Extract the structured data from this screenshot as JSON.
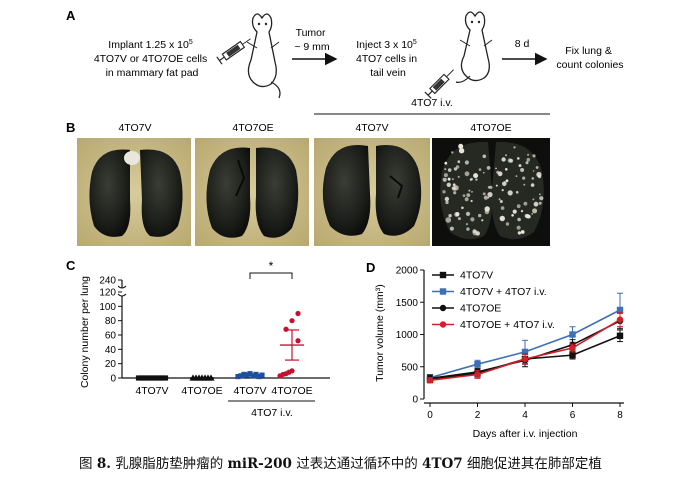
{
  "panel_a": {
    "letter": "A",
    "step1": [
      "Implant 1.25 x 10",
      "5",
      "4TO7V or 4TO7OE cells",
      "in mammary fat pad"
    ],
    "arrow1": [
      "Tumor",
      "~ 9 mm"
    ],
    "step2": [
      "Inject 3 x 10",
      "5",
      "4TO7 cells in",
      "tail vein"
    ],
    "arrow2": "8 d",
    "step3": [
      "Fix lung &",
      "count colonies"
    ]
  },
  "panel_b": {
    "letter": "B",
    "bracket_label": "4TO7 i.v.",
    "labels": [
      "4TO7V",
      "4TO7OE",
      "4TO7V",
      "4TO7OE"
    ]
  },
  "panel_c": {
    "letter": "C",
    "significance": "*",
    "bracket_label": "4TO7 i.v."
  },
  "panel_d": {
    "letter": "D"
  },
  "caption": {
    "prefix": "图",
    "number": "8.",
    "text_a": "乳腺脂肪垫肿瘤的",
    "mirna": "miR-200",
    "text_b": "过表达通过循环中的",
    "cell": "4TO7",
    "text_c": "细胞促进其在肺部定植"
  },
  "chart_data": [
    {
      "type": "scatter",
      "panel": "C",
      "ylabel": "Colony number per lung",
      "categories": [
        "4TO7V",
        "4TO7OE",
        "4TO7V",
        "4TO7OE"
      ],
      "yticks": [
        0,
        20,
        40,
        60,
        80,
        100,
        120,
        240
      ],
      "ylim": [
        0,
        120
      ],
      "axis_break": true,
      "colors": [
        "#111111",
        "#111111",
        "#1f4e9c",
        "#c8102e"
      ],
      "markers": [
        "square",
        "triangle",
        "square",
        "circle"
      ],
      "points": [
        [
          0,
          0,
          0,
          0,
          0,
          0,
          0,
          0,
          0,
          0
        ],
        [
          0,
          0,
          0,
          0,
          0,
          0,
          0
        ],
        [
          2,
          3,
          5,
          4,
          6,
          3,
          5,
          2,
          4
        ],
        [
          3,
          5,
          6,
          8,
          10,
          52,
          68,
          80,
          90
        ]
      ],
      "mean": [
        0,
        0,
        4,
        46
      ],
      "sem": [
        0,
        0,
        1,
        21
      ]
    },
    {
      "type": "line",
      "panel": "D",
      "xlabel": "Days after i.v. injection",
      "ylabel": "Tumor volume (mm³)",
      "x": [
        0,
        2,
        4,
        6,
        8
      ],
      "xlim": [
        0,
        8
      ],
      "ylim": [
        0,
        2000
      ],
      "yticks": [
        0,
        500,
        1000,
        1500,
        2000
      ],
      "legend": "top-left",
      "series": [
        {
          "name": "4TO7V",
          "color": "#111111",
          "marker": "square",
          "values": [
            300,
            400,
            620,
            680,
            980
          ],
          "err": [
            40,
            60,
            80,
            60,
            90
          ]
        },
        {
          "name": "4TO7V + 4TO7 i.v.",
          "color": "#3f6fb5",
          "marker": "square",
          "values": [
            330,
            540,
            730,
            1000,
            1380
          ],
          "err": [
            50,
            60,
            180,
            120,
            260
          ]
        },
        {
          "name": "4TO7OE",
          "color": "#111111",
          "marker": "circle",
          "values": [
            320,
            420,
            600,
            840,
            1210
          ],
          "err": [
            50,
            50,
            100,
            80,
            120
          ]
        },
        {
          "name": "4TO7OE + 4TO7 i.v.",
          "color": "#d0202a",
          "marker": "circle",
          "values": [
            290,
            380,
            620,
            790,
            1230
          ],
          "err": [
            40,
            60,
            80,
            60,
            110
          ]
        }
      ]
    }
  ]
}
